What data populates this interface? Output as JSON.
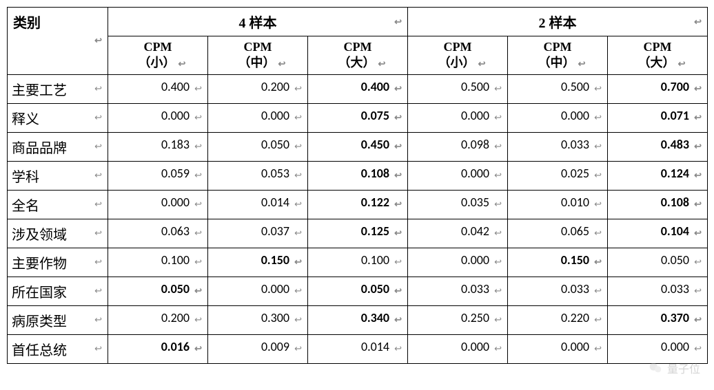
{
  "table": {
    "category_header": "类别",
    "groups": [
      {
        "label": "4 样本",
        "subcols": [
          "CPM（小）",
          "CPM（中）",
          "CPM（大）"
        ]
      },
      {
        "label": "2 样本",
        "subcols": [
          "CPM（小）",
          "CPM（中）",
          "CPM（大）"
        ]
      }
    ],
    "sub_label_top": "CPM",
    "sub_label_bottoms": [
      "（小）",
      "（中）",
      "（大）"
    ],
    "rows": [
      {
        "label": "主要工艺",
        "values": [
          "0.400",
          "0.200",
          "0.400",
          "0.500",
          "0.500",
          "0.700"
        ],
        "bold": [
          false,
          false,
          true,
          false,
          false,
          true
        ]
      },
      {
        "label": "释义",
        "values": [
          "0.000",
          "0.000",
          "0.075",
          "0.000",
          "0.000",
          "0.071"
        ],
        "bold": [
          false,
          false,
          true,
          false,
          false,
          true
        ]
      },
      {
        "label": "商品品牌",
        "values": [
          "0.183",
          "0.050",
          "0.450",
          "0.098",
          "0.033",
          "0.483"
        ],
        "bold": [
          false,
          false,
          true,
          false,
          false,
          true
        ]
      },
      {
        "label": "学科",
        "values": [
          "0.059",
          "0.053",
          "0.108",
          "0.000",
          "0.025",
          "0.124"
        ],
        "bold": [
          false,
          false,
          true,
          false,
          false,
          true
        ]
      },
      {
        "label": "全名",
        "values": [
          "0.000",
          "0.014",
          "0.122",
          "0.035",
          "0.010",
          "0.108"
        ],
        "bold": [
          false,
          false,
          true,
          false,
          false,
          true
        ]
      },
      {
        "label": "涉及领域",
        "values": [
          "0.063",
          "0.037",
          "0.125",
          "0.042",
          "0.065",
          "0.104"
        ],
        "bold": [
          false,
          false,
          true,
          false,
          false,
          true
        ]
      },
      {
        "label": "主要作物",
        "values": [
          "0.100",
          "0.150",
          "0.100",
          "0.000",
          "0.150",
          "0.050"
        ],
        "bold": [
          false,
          true,
          false,
          false,
          true,
          false
        ]
      },
      {
        "label": "所在国家",
        "values": [
          "0.050",
          "0.000",
          "0.050",
          "0.033",
          "0.033",
          "0.033"
        ],
        "bold": [
          true,
          false,
          true,
          false,
          false,
          false
        ]
      },
      {
        "label": "病原类型",
        "values": [
          "0.200",
          "0.300",
          "0.340",
          "0.250",
          "0.220",
          "0.370"
        ],
        "bold": [
          false,
          false,
          true,
          false,
          false,
          true
        ]
      },
      {
        "label": "首任总统",
        "values": [
          "0.016",
          "0.009",
          "0.014",
          "0.000",
          "0.000",
          "0.000"
        ],
        "bold": [
          true,
          false,
          false,
          false,
          false,
          false
        ]
      }
    ],
    "return_glyph": "↩",
    "colors": {
      "border": "#000000",
      "background": "#ffffff",
      "text": "#000000",
      "glyph": "#888888"
    },
    "fonts": {
      "cjk": "SimSun",
      "numeric": "Calibri",
      "header_size_pt": 15,
      "body_size_pt": 14
    }
  },
  "watermark": {
    "text": "量子位"
  }
}
